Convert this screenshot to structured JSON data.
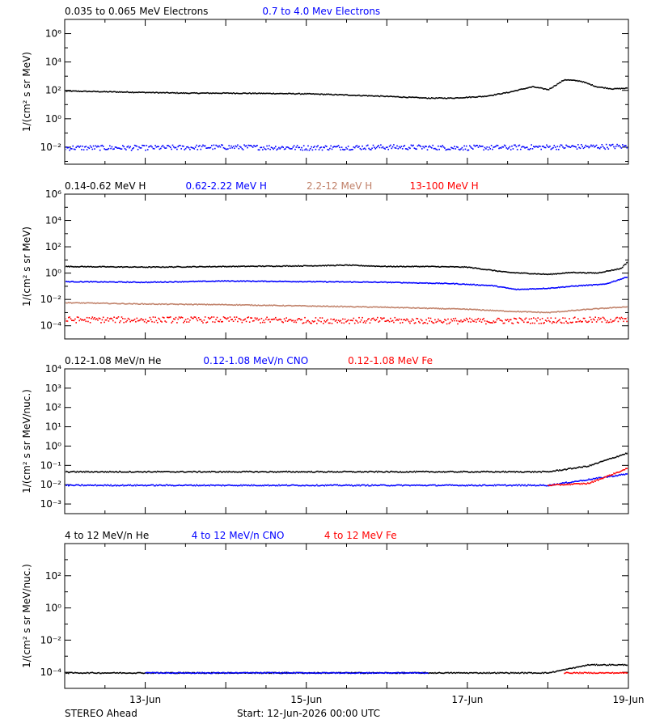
{
  "footer": {
    "observatory": "STEREO Ahead",
    "start": "Start: 12-Jun-2026 00:00 UTC"
  },
  "colors": {
    "black": "#000000",
    "blue": "#0000ff",
    "tan": "#c08068",
    "red": "#ff0000"
  },
  "chart_data": [
    {
      "type": "scatter",
      "scale": "log",
      "ylabel": "1/(cm² s sr MeV)",
      "ylim_exp": [
        -3.2,
        7
      ],
      "ytick_exps": [
        6,
        4,
        2,
        0,
        -2
      ],
      "ytick_labels": [
        "10⁶",
        "10⁴",
        "10²",
        "10⁰",
        "10⁻²"
      ],
      "x_range_days": [
        0,
        7
      ],
      "x_tick_labels": [],
      "series": [
        {
          "name": "0.035 to 0.065 MeV Electrons",
          "color": "#000000",
          "points": [
            [
              0,
              2.0
            ],
            [
              0.5,
              1.95
            ],
            [
              1,
              1.9
            ],
            [
              1.5,
              1.85
            ],
            [
              2,
              1.85
            ],
            [
              2.5,
              1.83
            ],
            [
              3,
              1.8
            ],
            [
              3.5,
              1.72
            ],
            [
              4,
              1.62
            ],
            [
              4.5,
              1.5
            ],
            [
              4.8,
              1.5
            ],
            [
              5.2,
              1.62
            ],
            [
              5.5,
              1.9
            ],
            [
              5.8,
              2.3
            ],
            [
              6.0,
              2.1
            ],
            [
              6.2,
              2.8
            ],
            [
              6.4,
              2.7
            ],
            [
              6.6,
              2.3
            ],
            [
              6.8,
              2.15
            ],
            [
              7,
              2.2
            ]
          ]
        },
        {
          "name": "0.7 to 4.0 Mev Electrons",
          "color": "#0000ff",
          "points": [
            [
              0,
              -2.0
            ],
            [
              1,
              -2.0
            ],
            [
              2,
              -1.95
            ],
            [
              3,
              -2.0
            ],
            [
              4,
              -1.95
            ],
            [
              5,
              -2.0
            ],
            [
              6,
              -1.95
            ],
            [
              7,
              -1.9
            ]
          ]
        }
      ]
    },
    {
      "type": "scatter",
      "scale": "log",
      "ylabel": "1/(cm² s sr MeV)",
      "ylim_exp": [
        -5,
        6
      ],
      "ytick_exps": [
        6,
        4,
        2,
        0,
        -2,
        -4
      ],
      "ytick_labels": [
        "10⁶",
        "10⁴",
        "10²",
        "10⁰",
        "10⁻²",
        "10⁻⁴"
      ],
      "x_range_days": [
        0,
        7
      ],
      "x_tick_labels": [],
      "series": [
        {
          "name": "0.14-0.62 MeV H",
          "color": "#000000",
          "points": [
            [
              0,
              0.55
            ],
            [
              1,
              0.5
            ],
            [
              2,
              0.55
            ],
            [
              3,
              0.6
            ],
            [
              3.5,
              0.65
            ],
            [
              4,
              0.55
            ],
            [
              4.5,
              0.55
            ],
            [
              5,
              0.5
            ],
            [
              5.5,
              0.1
            ],
            [
              6,
              -0.05
            ],
            [
              6.3,
              0.1
            ],
            [
              6.6,
              0.05
            ],
            [
              6.9,
              0.4
            ],
            [
              7,
              1.0
            ]
          ]
        },
        {
          "name": "0.62-2.22 MeV H",
          "color": "#0000ff",
          "points": [
            [
              0,
              -0.6
            ],
            [
              1,
              -0.65
            ],
            [
              2,
              -0.55
            ],
            [
              3,
              -0.6
            ],
            [
              4,
              -0.65
            ],
            [
              4.8,
              -0.75
            ],
            [
              5.3,
              -0.9
            ],
            [
              5.6,
              -1.2
            ],
            [
              6,
              -1.1
            ],
            [
              6.4,
              -0.9
            ],
            [
              6.7,
              -0.8
            ],
            [
              7,
              -0.2
            ]
          ]
        },
        {
          "name": "2.2-12 MeV H",
          "color": "#c08068",
          "points": [
            [
              0,
              -2.2
            ],
            [
              1,
              -2.3
            ],
            [
              2,
              -2.35
            ],
            [
              3,
              -2.45
            ],
            [
              4,
              -2.55
            ],
            [
              5,
              -2.7
            ],
            [
              5.5,
              -2.85
            ],
            [
              6,
              -2.95
            ],
            [
              6.5,
              -2.7
            ],
            [
              7,
              -2.5
            ]
          ]
        },
        {
          "name": "13-100 MeV H",
          "color": "#ff0000",
          "points": [
            [
              0,
              -3.5
            ],
            [
              1,
              -3.5
            ],
            [
              2,
              -3.5
            ],
            [
              3,
              -3.55
            ],
            [
              4,
              -3.55
            ],
            [
              5,
              -3.6
            ],
            [
              6,
              -3.55
            ],
            [
              7,
              -3.5
            ]
          ]
        }
      ]
    },
    {
      "type": "scatter",
      "scale": "log",
      "ylabel": "1/(cm² s sr MeV/nuc.)",
      "ylim_exp": [
        -3.5,
        4
      ],
      "ytick_exps": [
        4,
        3,
        2,
        1,
        0,
        -1,
        -2,
        -3
      ],
      "ytick_labels": [
        "10⁴",
        "10³",
        "10²",
        "10¹",
        "10⁰",
        "10⁻¹",
        "10⁻²",
        "10⁻³"
      ],
      "x_range_days": [
        0,
        7
      ],
      "x_tick_labels": [],
      "series": [
        {
          "name": "0.12-1.08 MeV/n He",
          "color": "#000000",
          "points": [
            [
              0,
              -1.3
            ],
            [
              1,
              -1.3
            ],
            [
              2,
              -1.3
            ],
            [
              3,
              -1.3
            ],
            [
              4,
              -1.3
            ],
            [
              5,
              -1.3
            ],
            [
              6,
              -1.3
            ],
            [
              6.5,
              -1.0
            ],
            [
              7,
              -0.3
            ]
          ]
        },
        {
          "name": "0.12-1.08 MeV/n CNO",
          "color": "#0000ff",
          "points": [
            [
              0,
              -2.0
            ],
            [
              1,
              -2.0
            ],
            [
              2,
              -2.0
            ],
            [
              3,
              -2.0
            ],
            [
              4,
              -2.0
            ],
            [
              5,
              -2.0
            ],
            [
              6,
              -2.0
            ],
            [
              7,
              -1.4
            ]
          ]
        },
        {
          "name": "0.12-1.08 MeV Fe",
          "color": "#ff0000",
          "points": [
            [
              6,
              -2.0
            ],
            [
              6.5,
              -1.9
            ],
            [
              7,
              -1.1
            ]
          ]
        }
      ]
    },
    {
      "type": "scatter",
      "scale": "log",
      "ylabel": "1/(cm² s sr MeV/nuc.)",
      "ylim_exp": [
        -5,
        4
      ],
      "ytick_exps": [
        2,
        0,
        -2,
        -4
      ],
      "ytick_labels": [
        "10²",
        "10⁰",
        "10⁻²",
        "10⁻⁴"
      ],
      "x_range_days": [
        0,
        7
      ],
      "x_ticks_days": [
        1,
        3,
        5,
        7
      ],
      "x_tick_labels": [
        "13-Jun",
        "15-Jun",
        "17-Jun",
        "19-Jun"
      ],
      "series": [
        {
          "name": "4 to 12 MeV/n He",
          "color": "#000000",
          "points": [
            [
              0,
              -4.0
            ],
            [
              1,
              -4.0
            ],
            [
              2,
              -4.0
            ],
            [
              3,
              -4.0
            ],
            [
              4,
              -4.0
            ],
            [
              5,
              -4.0
            ],
            [
              6,
              -4.0
            ],
            [
              6.5,
              -3.5
            ],
            [
              7,
              -3.5
            ]
          ]
        },
        {
          "name": "4 to 12 MeV/n CNO",
          "color": "#0000ff",
          "points": [
            [
              1,
              -4.0
            ],
            [
              4.5,
              -4.0
            ]
          ]
        },
        {
          "name": "4 to 12 MeV Fe",
          "color": "#ff0000",
          "points": [
            [
              6.2,
              -4.0
            ],
            [
              7,
              -4.0
            ]
          ]
        }
      ]
    }
  ]
}
